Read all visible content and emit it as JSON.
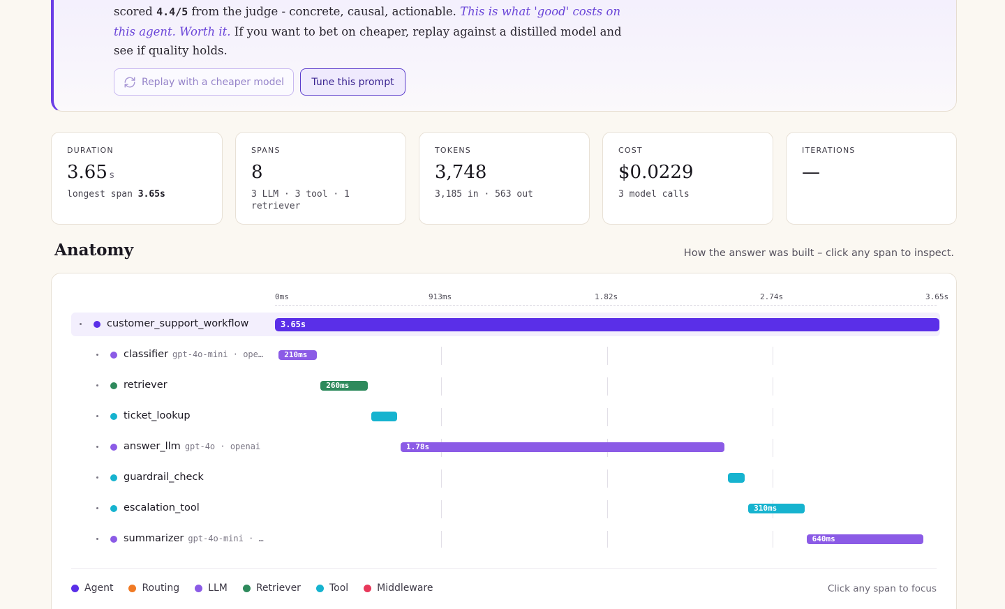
{
  "insight": {
    "pre": "scored ",
    "score": "4.4/5",
    "mid": " from the judge - concrete, causal, actionable. ",
    "emphasis": "This is what 'good' costs on this agent. Worth it.",
    "post": " If you want to bet on cheaper, replay against a distilled model and see if quality holds.",
    "replay_label": "Replay with a cheaper model",
    "tune_label": "Tune this prompt"
  },
  "stats": [
    {
      "label": "DURATION",
      "value": "3.65",
      "unit": "s",
      "sub_prefix": "longest span ",
      "sub_bold": "3.65s"
    },
    {
      "label": "SPANS",
      "value": "8",
      "unit": "",
      "sub_prefix": "3 LLM · 3 tool · 1 retriever",
      "sub_bold": ""
    },
    {
      "label": "TOKENS",
      "value": "3,748",
      "unit": "",
      "sub_prefix": "3,185 in · 563 out",
      "sub_bold": ""
    },
    {
      "label": "COST",
      "value": "$0.0229",
      "unit": "",
      "sub_prefix": "3 model calls",
      "sub_bold": ""
    },
    {
      "label": "ITERATIONS",
      "value": "—",
      "unit": "",
      "sub_prefix": "",
      "sub_bold": ""
    }
  ],
  "anatomy": {
    "title": "Anatomy",
    "hint": "How the answer was built – click any span to inspect.",
    "ticks": [
      "0ms",
      "913ms",
      "1.82s",
      "2.74s",
      "3.65s"
    ],
    "total_ms": 3650,
    "spans": [
      {
        "name": "customer_support_workflow",
        "meta": "",
        "kind": "Agent",
        "start_ms": 0,
        "duration_ms": 3650,
        "label": "3.65s",
        "depth": 0
      },
      {
        "name": "classifier",
        "meta": "gpt-4o-mini · ope…",
        "kind": "LLM",
        "start_ms": 20,
        "duration_ms": 210,
        "label": "210ms",
        "depth": 1
      },
      {
        "name": "retriever",
        "meta": "",
        "kind": "Retriever",
        "start_ms": 250,
        "duration_ms": 260,
        "label": "260ms",
        "depth": 1
      },
      {
        "name": "ticket_lookup",
        "meta": "",
        "kind": "Tool",
        "start_ms": 530,
        "duration_ms": 140,
        "label": "",
        "depth": 1
      },
      {
        "name": "answer_llm",
        "meta": "gpt-4o · openai",
        "kind": "LLM",
        "start_ms": 690,
        "duration_ms": 1780,
        "label": "1.78s",
        "depth": 1
      },
      {
        "name": "guardrail_check",
        "meta": "",
        "kind": "Tool",
        "start_ms": 2490,
        "duration_ms": 90,
        "label": "",
        "depth": 1
      },
      {
        "name": "escalation_tool",
        "meta": "",
        "kind": "Tool",
        "start_ms": 2600,
        "duration_ms": 310,
        "label": "310ms",
        "depth": 1
      },
      {
        "name": "summarizer",
        "meta": "gpt-4o-mini · …",
        "kind": "LLM",
        "start_ms": 2920,
        "duration_ms": 640,
        "label": "640ms",
        "depth": 1
      }
    ]
  },
  "legend": [
    {
      "label": "Agent",
      "color": "#5a2fe8"
    },
    {
      "label": "Routing",
      "color": "#f07a24"
    },
    {
      "label": "LLM",
      "color": "#8b5be6"
    },
    {
      "label": "Retriever",
      "color": "#2e8a5c"
    },
    {
      "label": "Tool",
      "color": "#16b3cf"
    },
    {
      "label": "Middleware",
      "color": "#e8385a"
    }
  ],
  "focus_hint": "Click any span to focus"
}
